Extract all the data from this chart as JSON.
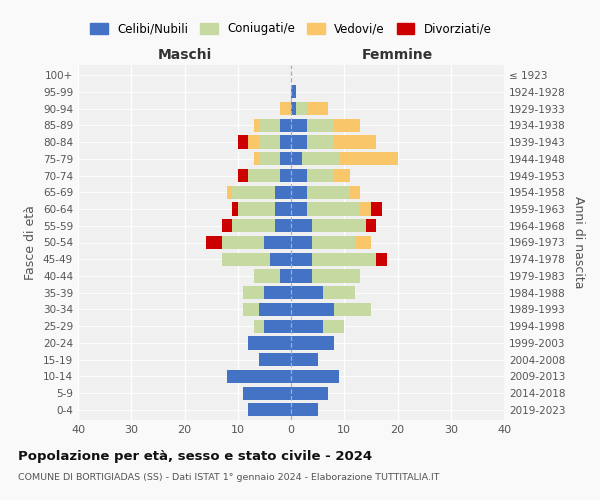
{
  "age_groups": [
    "0-4",
    "5-9",
    "10-14",
    "15-19",
    "20-24",
    "25-29",
    "30-34",
    "35-39",
    "40-44",
    "45-49",
    "50-54",
    "55-59",
    "60-64",
    "65-69",
    "70-74",
    "75-79",
    "80-84",
    "85-89",
    "90-94",
    "95-99",
    "100+"
  ],
  "birth_years": [
    "2019-2023",
    "2014-2018",
    "2009-2013",
    "2004-2008",
    "1999-2003",
    "1994-1998",
    "1989-1993",
    "1984-1988",
    "1979-1983",
    "1974-1978",
    "1969-1973",
    "1964-1968",
    "1959-1963",
    "1954-1958",
    "1949-1953",
    "1944-1948",
    "1939-1943",
    "1934-1938",
    "1929-1933",
    "1924-1928",
    "≤ 1923"
  ],
  "colors": {
    "celibi": "#4472c4",
    "coniugati": "#c5d9a0",
    "vedovi": "#f9c76a",
    "divorziati": "#cc0000"
  },
  "maschi": {
    "celibi": [
      8,
      9,
      12,
      6,
      8,
      5,
      6,
      5,
      2,
      4,
      5,
      3,
      3,
      3,
      2,
      2,
      2,
      2,
      0,
      0,
      0
    ],
    "coniugati": [
      0,
      0,
      0,
      0,
      0,
      2,
      3,
      4,
      5,
      9,
      8,
      8,
      7,
      8,
      6,
      4,
      4,
      4,
      0,
      0,
      0
    ],
    "vedovi": [
      0,
      0,
      0,
      0,
      0,
      0,
      0,
      0,
      0,
      0,
      0,
      0,
      0,
      1,
      0,
      1,
      2,
      1,
      2,
      0,
      0
    ],
    "divorziati": [
      0,
      0,
      0,
      0,
      0,
      0,
      0,
      0,
      0,
      0,
      3,
      2,
      1,
      0,
      2,
      0,
      2,
      0,
      0,
      0,
      0
    ]
  },
  "femmine": {
    "celibi": [
      5,
      7,
      9,
      5,
      8,
      6,
      8,
      6,
      4,
      4,
      4,
      4,
      3,
      3,
      3,
      2,
      3,
      3,
      1,
      1,
      0
    ],
    "coniugati": [
      0,
      0,
      0,
      0,
      0,
      4,
      7,
      6,
      9,
      12,
      8,
      10,
      10,
      8,
      5,
      7,
      5,
      5,
      2,
      0,
      0
    ],
    "vedovi": [
      0,
      0,
      0,
      0,
      0,
      0,
      0,
      0,
      0,
      0,
      3,
      0,
      2,
      2,
      3,
      11,
      8,
      5,
      4,
      0,
      0
    ],
    "divorziati": [
      0,
      0,
      0,
      0,
      0,
      0,
      0,
      0,
      0,
      2,
      0,
      2,
      2,
      0,
      0,
      0,
      0,
      0,
      0,
      0,
      0
    ]
  },
  "xlim": [
    -40,
    40
  ],
  "xticks": [
    -40,
    -30,
    -20,
    -10,
    0,
    10,
    20,
    30,
    40
  ],
  "xticklabels": [
    "40",
    "30",
    "20",
    "10",
    "0",
    "10",
    "20",
    "30",
    "40"
  ],
  "xlabel_left": "Maschi",
  "xlabel_right": "Femmine",
  "ylabel_left": "Fasce di età",
  "ylabel_right": "Anni di nascita",
  "legend_labels": [
    "Celibi/Nubili",
    "Coniugati/e",
    "Vedovi/e",
    "Divorziati/e"
  ],
  "title1": "Popolazione per età, sesso e stato civile - 2024",
  "title2": "COMUNE DI BORTIGIADAS (SS) - Dati ISTAT 1° gennaio 2024 - Elaborazione TUTTITALIA.IT",
  "background_color": "#f9f9f9",
  "axes_background": "#f0f0f0"
}
